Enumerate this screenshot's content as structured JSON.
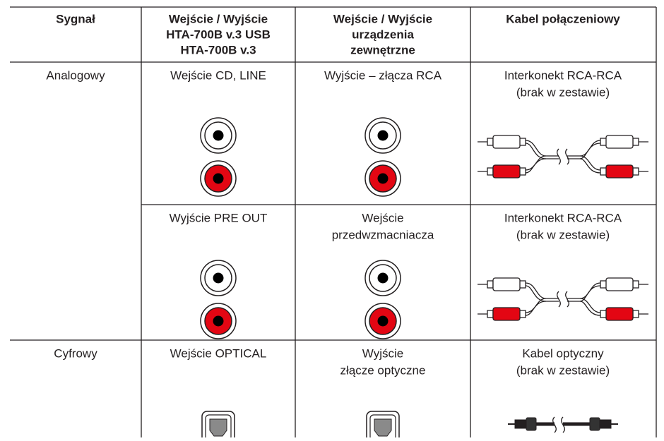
{
  "table": {
    "header": [
      [
        "Sygnał"
      ],
      [
        "Wejście / Wyjście",
        "HTA-700B v.3 USB",
        "HTA-700B v.3"
      ],
      [
        "Wejście / Wyjście",
        "urządzenia",
        "zewnętrzne"
      ],
      [
        "Kabel połączeniowy"
      ]
    ],
    "groups": [
      {
        "signal": "Analogowy",
        "rows": [
          {
            "input": [
              "Wejście CD, LINE"
            ],
            "external": [
              "Wyjście – złącza RCA"
            ],
            "cable": [
              "Interkonekt RCA-RCA",
              "(brak w zestawie)"
            ]
          },
          {
            "input": [
              "Wyjście PRE OUT"
            ],
            "external": [
              "Wejście",
              "przedwzmacniacza"
            ],
            "cable": [
              "Interkonekt RCA-RCA",
              "(brak w zestawie)"
            ]
          }
        ]
      },
      {
        "signal": "Cyfrowy",
        "rows": [
          {
            "input": [
              "Wejście OPTICAL"
            ],
            "external": [
              "Wyjście",
              "złącze optyczne"
            ],
            "cable": [
              "Kabel optyczny",
              "(brak w zestawie)"
            ]
          }
        ]
      }
    ]
  }
}
